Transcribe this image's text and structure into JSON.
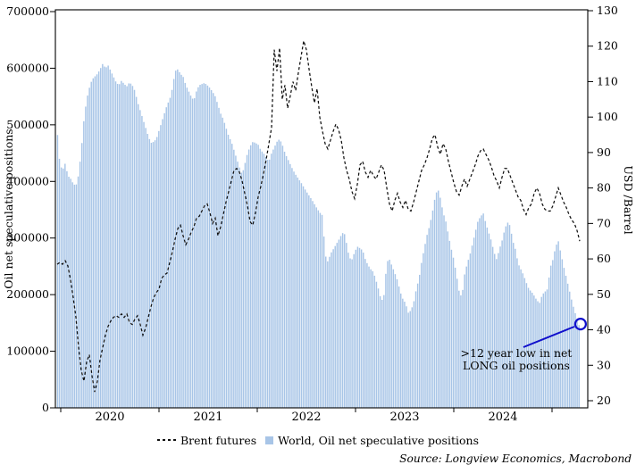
{
  "chart_data": {
    "type": "combo",
    "title": "",
    "left_axis": {
      "label": "Oil net speculative positions",
      "min": 0,
      "max": 700000,
      "ticks": [
        "0",
        "100000",
        "200000",
        "300000",
        "400000",
        "500000",
        "600000",
        "700000"
      ]
    },
    "right_axis": {
      "label": "USD /Barrel",
      "min": 20,
      "max": 130,
      "ticks": [
        "20",
        "30",
        "40",
        "50",
        "60",
        "70",
        "80",
        "90",
        "100",
        "110",
        "120",
        "130"
      ]
    },
    "x_axis": {
      "year_boundaries": [
        2020,
        2021,
        2022,
        2023,
        2024,
        2025
      ],
      "year_labels": [
        "2020",
        "2021",
        "2022",
        "2023",
        "2024"
      ]
    },
    "series": [
      {
        "name": "World, Oil net speculative positions",
        "type": "bar",
        "axis": "left",
        "color": "#a8c5e7",
        "t0": 2019.9636,
        "dt": 0.0272727,
        "value_scale": 1000,
        "values": [
          490,
          430,
          420,
          432,
          410,
          405,
          396,
          392,
          412,
          455,
          510,
          545,
          565,
          580,
          585,
          590,
          598,
          608,
          600,
          605,
          595,
          585,
          575,
          570,
          578,
          572,
          568,
          575,
          570,
          560,
          540,
          525,
          510,
          495,
          480,
          468,
          470,
          475,
          490,
          505,
          520,
          535,
          545,
          565,
          595,
          598,
          590,
          585,
          570,
          560,
          550,
          543,
          560,
          570,
          572,
          574,
          570,
          565,
          558,
          550,
          535,
          520,
          510,
          495,
          480,
          470,
          455,
          440,
          425,
          412,
          430,
          450,
          462,
          470,
          468,
          465,
          455,
          450,
          442,
          435,
          450,
          460,
          470,
          475,
          465,
          450,
          440,
          430,
          420,
          412,
          405,
          398,
          390,
          382,
          375,
          368,
          360,
          352,
          345,
          340,
          270,
          258,
          272,
          280,
          288,
          296,
          305,
          312,
          290,
          265,
          262,
          275,
          285,
          282,
          278,
          262,
          252,
          245,
          240,
          225,
          208,
          188,
          200,
          258,
          262,
          250,
          238,
          225,
          205,
          192,
          185,
          168,
          172,
          185,
          210,
          228,
          258,
          282,
          305,
          322,
          345,
          372,
          388,
          370,
          345,
          330,
          305,
          282,
          262,
          235,
          205,
          195,
          235,
          255,
          270,
          290,
          310,
          330,
          338,
          344,
          325,
          310,
          295,
          275,
          262,
          280,
          295,
          315,
          328,
          322,
          295,
          280,
          255,
          245,
          235,
          222,
          210,
          205,
          198,
          190,
          185,
          200,
          205,
          210,
          248,
          262,
          285,
          295,
          272,
          250,
          230,
          210,
          190,
          172,
          158,
          142
        ]
      },
      {
        "name": "Brent futures",
        "type": "line",
        "axis": "right",
        "style": "dashed",
        "color": "#111111",
        "t0": 2019.9636,
        "dt": 0.0272727,
        "value_scale": 1,
        "values": [
          58.5,
          59,
          58.5,
          59.5,
          58,
          54,
          49,
          43.5,
          35,
          28.5,
          25.5,
          31,
          33,
          27,
          22.5,
          25.5,
          31.5,
          35,
          38.5,
          41,
          42.5,
          43.5,
          44,
          43.5,
          44.5,
          43.5,
          44.5,
          42,
          41.5,
          43,
          44,
          41.5,
          38.5,
          40.5,
          43.5,
          46.5,
          49,
          50.5,
          51.5,
          54.5,
          55.5,
          56,
          59,
          62,
          65.5,
          68.5,
          69.5,
          66.5,
          64,
          65.5,
          67.5,
          69,
          71.5,
          72,
          73.5,
          75,
          75.5,
          73,
          70,
          71.5,
          66.5,
          69,
          72.5,
          76,
          79,
          82,
          85,
          85.5,
          84.5,
          82,
          78.5,
          75,
          70.5,
          69.5,
          73,
          77.5,
          80.5,
          84,
          88,
          92.5,
          97,
          119,
          113,
          119.5,
          105,
          109,
          102.5,
          106,
          110,
          107.5,
          112.5,
          117,
          121.5,
          119,
          113.5,
          108.5,
          104,
          108,
          100,
          96,
          92.5,
          91,
          93.5,
          96,
          98,
          96.5,
          93.5,
          88.5,
          85,
          82.5,
          79,
          77,
          81,
          86.5,
          87.5,
          84.5,
          83,
          85,
          83.5,
          82.5,
          84.5,
          86.5,
          85,
          80,
          75.5,
          73.5,
          76.5,
          78.5,
          76,
          74.5,
          76.5,
          74,
          73.5,
          76,
          79,
          82,
          85,
          86.5,
          88.5,
          91,
          94,
          95,
          91.5,
          89.5,
          92.5,
          91,
          87.5,
          84.5,
          81.5,
          79,
          78,
          80.5,
          82.5,
          80.5,
          82.5,
          84.5,
          86.5,
          89,
          90.5,
          91,
          89.5,
          88,
          86,
          83.5,
          82,
          80,
          83,
          85.5,
          85.5,
          83.5,
          81.5,
          79.5,
          77.5,
          76.5,
          74,
          72.5,
          74.5,
          75.5,
          78.5,
          80,
          78.5,
          75.5,
          74,
          73.5,
          73.5,
          75,
          77.5,
          80,
          78,
          76,
          74.5,
          72.5,
          71,
          70,
          68,
          65
        ]
      }
    ],
    "legend": [
      {
        "label": "Brent futures",
        "marker": "dashed-line",
        "color": "#111111"
      },
      {
        "label": "World, Oil net speculative positions",
        "marker": "square",
        "color": "#a8c5e7"
      }
    ],
    "annotation": {
      "lines": [
        ">12 year low in net",
        "LONG oil positions"
      ],
      "color": "#1010cc",
      "marker": {
        "t": 2025.29,
        "value": 148000
      }
    },
    "source": "Source: Longview Economics, Macrobond"
  }
}
